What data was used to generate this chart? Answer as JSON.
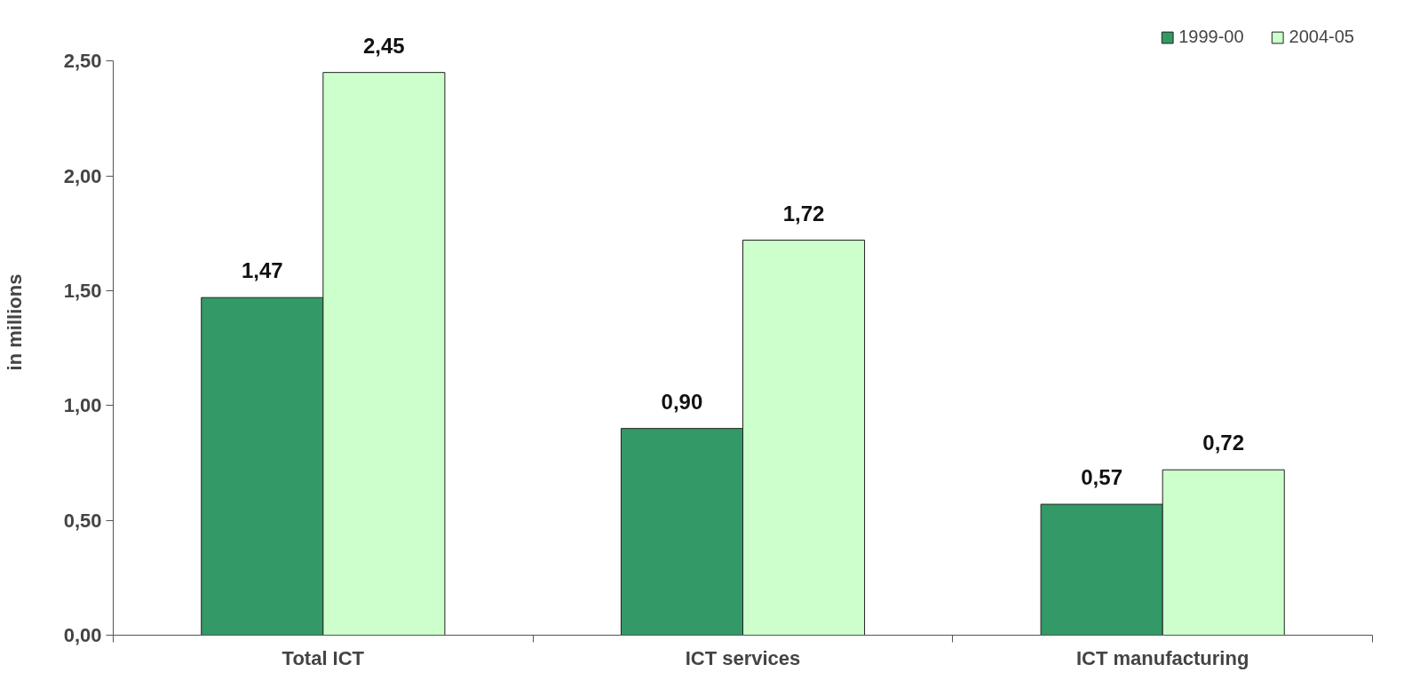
{
  "chart_data": {
    "type": "bar",
    "ylabel": "in millions",
    "categories": [
      "Total ICT",
      "ICT services",
      "ICT manufacturing"
    ],
    "series": [
      {
        "name": "1999-00",
        "color": "#339966",
        "values": [
          1.47,
          0.9,
          0.57
        ],
        "value_labels": [
          "1,47",
          "0,90",
          "0,57"
        ]
      },
      {
        "name": "2004-05",
        "color": "#ccffcc",
        "values": [
          2.45,
          1.72,
          0.72
        ],
        "value_labels": [
          "2,45",
          "1,72",
          "0,72"
        ]
      }
    ],
    "ylim": [
      0,
      2.5
    ],
    "yticks": [
      {
        "value": 0,
        "label": "0,00"
      },
      {
        "value": 0.5,
        "label": "0,50"
      },
      {
        "value": 1,
        "label": "1,00"
      },
      {
        "value": 1.5,
        "label": "1,50"
      },
      {
        "value": 2,
        "label": "2,00"
      },
      {
        "value": 2.5,
        "label": "2,50"
      }
    ],
    "grid": false,
    "legend": "top right"
  }
}
